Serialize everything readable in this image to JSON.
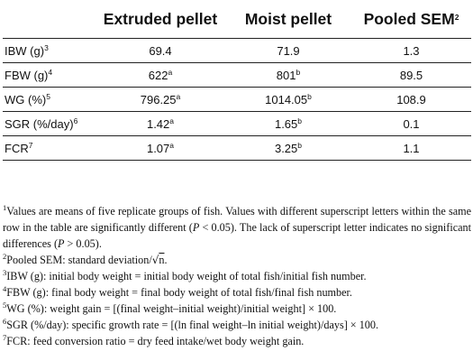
{
  "table": {
    "columns": [
      "",
      "Extruded pellet",
      "Moist pellet",
      "Pooled SEM"
    ],
    "header_sup": [
      "",
      "",
      "",
      "2"
    ],
    "rows": [
      {
        "label": "IBW (g)",
        "label_sup": "3",
        "v1": "69.4",
        "s1": "",
        "v2": "71.9",
        "s2": "",
        "v3": "1.3"
      },
      {
        "label": "FBW (g)",
        "label_sup": "4",
        "v1": "622",
        "s1": "a",
        "v2": "801",
        "s2": "b",
        "v3": "89.5"
      },
      {
        "label": "WG (%)",
        "label_sup": "5",
        "v1": "796.25",
        "s1": "a",
        "v2": "1014.05",
        "s2": "b",
        "v3": "108.9"
      },
      {
        "label": "SGR (%/day)",
        "label_sup": "6",
        "v1": "1.42",
        "s1": "a",
        "v2": "1.65",
        "s2": "b",
        "v3": "0.1"
      },
      {
        "label": "FCR",
        "label_sup": "7",
        "v1": "1.07",
        "s1": "a",
        "v2": "3.25",
        "s2": "b",
        "v3": "1.1"
      }
    ]
  },
  "footnotes": {
    "n1": {
      "sup": "1",
      "a": "Values are means of five replicate groups of fish. Values with different superscript letters within the same row in the table are significantly different (",
      "p1": "P",
      "b": " < 0.05). The lack of superscript letter indicates no significant differences (",
      "p2": "P",
      "c": " > 0.05)."
    },
    "n2": {
      "sup": "2",
      "a": "Pooled SEM: standard deviation/",
      "root": "√",
      "n": "n",
      "end": "."
    },
    "n3": {
      "sup": "3",
      "text": "IBW (g): initial body weight = initial body weight of total fish/initial fish number."
    },
    "n4": {
      "sup": "4",
      "text": "FBW (g): final body weight = final body weight of total fish/final fish number."
    },
    "n5": {
      "sup": "5",
      "text": "WG (%): weight gain = [(final weight–initial weight)/initial weight] × 100."
    },
    "n6": {
      "sup": "6",
      "text": "SGR (%/day): specific growth rate = [(ln final weight–ln initial weight)/days] × 100."
    },
    "n7": {
      "sup": "7",
      "text": "FCR: feed conversion ratio = dry feed intake/wet body weight gain."
    }
  }
}
